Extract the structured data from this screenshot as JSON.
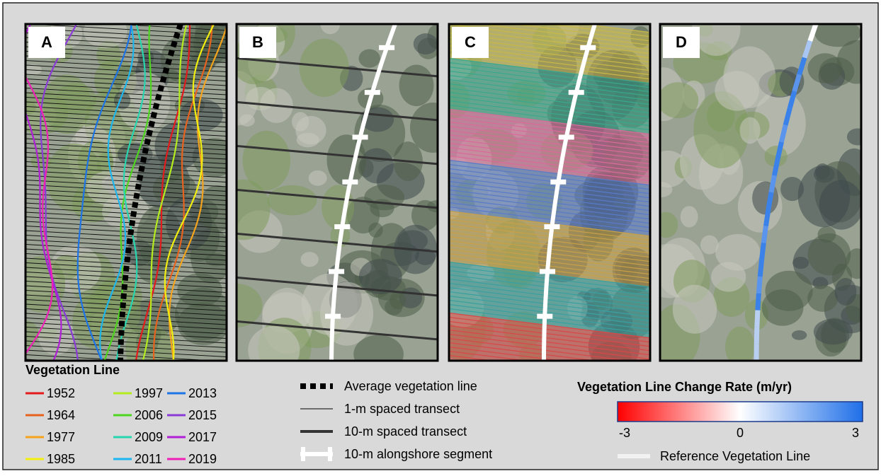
{
  "panels": [
    "A",
    "B",
    "C",
    "D"
  ],
  "vegetation_legend": {
    "title": "Vegetation Line",
    "items": [
      {
        "year": "1952",
        "color": "#e41a1c"
      },
      {
        "year": "1964",
        "color": "#e8621e"
      },
      {
        "year": "1977",
        "color": "#f5a31c"
      },
      {
        "year": "1985",
        "color": "#f2ee0e"
      },
      {
        "year": "1997",
        "color": "#b4ec1e"
      },
      {
        "year": "2006",
        "color": "#4ed61e"
      },
      {
        "year": "2009",
        "color": "#26d6b0"
      },
      {
        "year": "2011",
        "color": "#1cb6ee"
      },
      {
        "year": "2013",
        "color": "#1c74e6"
      },
      {
        "year": "2015",
        "color": "#8a3ad6"
      },
      {
        "year": "2017",
        "color": "#b01ed6"
      },
      {
        "year": "2019",
        "color": "#ee1eb6"
      }
    ]
  },
  "line_legend": {
    "items": [
      "Average vegetation line",
      "1-m spaced transect",
      "10-m spaced transect",
      "10-m alongshore segment"
    ]
  },
  "change_rate": {
    "title": "Vegetation Line Change Rate (m/yr)",
    "ticks": [
      -3,
      0,
      3
    ],
    "colors": [
      "#ff0000",
      "#ffffff",
      "#1f6fe8"
    ],
    "reference_label": "Reference Vegetation Line"
  }
}
